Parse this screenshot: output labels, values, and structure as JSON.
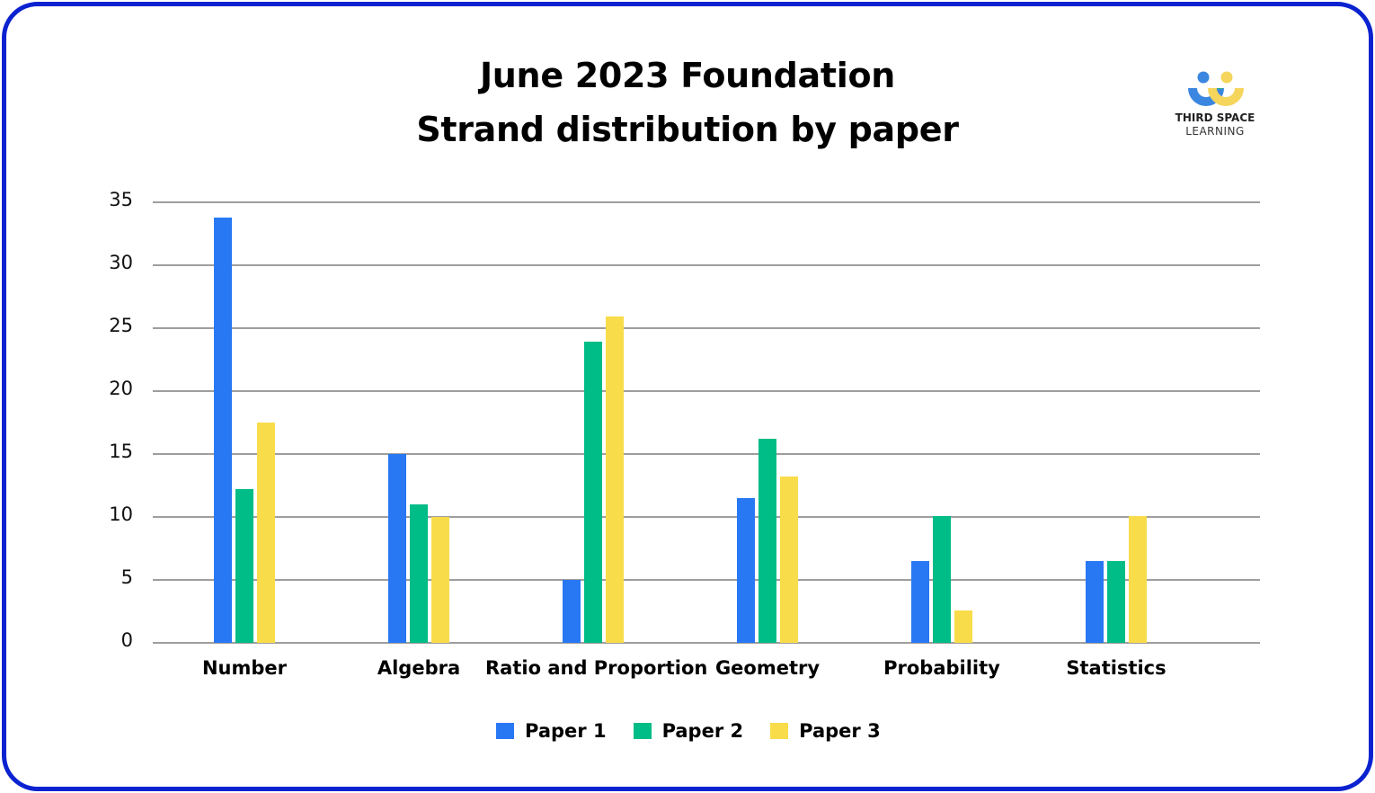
{
  "chart_data": {
    "type": "bar",
    "title": "June 2023 Foundation",
    "subtitle": "Strand distribution by paper",
    "xlabel": "",
    "ylabel": "",
    "ylim": [
      0,
      35
    ],
    "yticks": [
      0,
      5,
      10,
      15,
      20,
      25,
      30,
      35
    ],
    "grid": true,
    "legend_position": "bottom",
    "categories": [
      "Number",
      "Algebra",
      "Ratio and Proportion",
      "Geometry",
      "Probability",
      "Statistics"
    ],
    "series": [
      {
        "name": "Paper 1",
        "color": "#2878f4",
        "values": [
          33.8,
          15.0,
          5.0,
          11.5,
          6.5,
          6.5
        ]
      },
      {
        "name": "Paper 2",
        "color": "#00bc87",
        "values": [
          12.2,
          11.0,
          23.9,
          16.2,
          10.1,
          6.5
        ]
      },
      {
        "name": "Paper 3",
        "color": "#f9dc4a",
        "values": [
          17.5,
          10.0,
          25.9,
          13.2,
          2.6,
          10.1
        ]
      }
    ]
  },
  "header": {
    "title_line1": "June 2023 Foundation",
    "title_line2": "Strand distribution by paper"
  },
  "logo": {
    "line1": "THIRD SPACE",
    "line2": "LEARNING",
    "icon": "two-people-logo-icon"
  },
  "frame": {
    "border_color": "#0a22d0"
  }
}
